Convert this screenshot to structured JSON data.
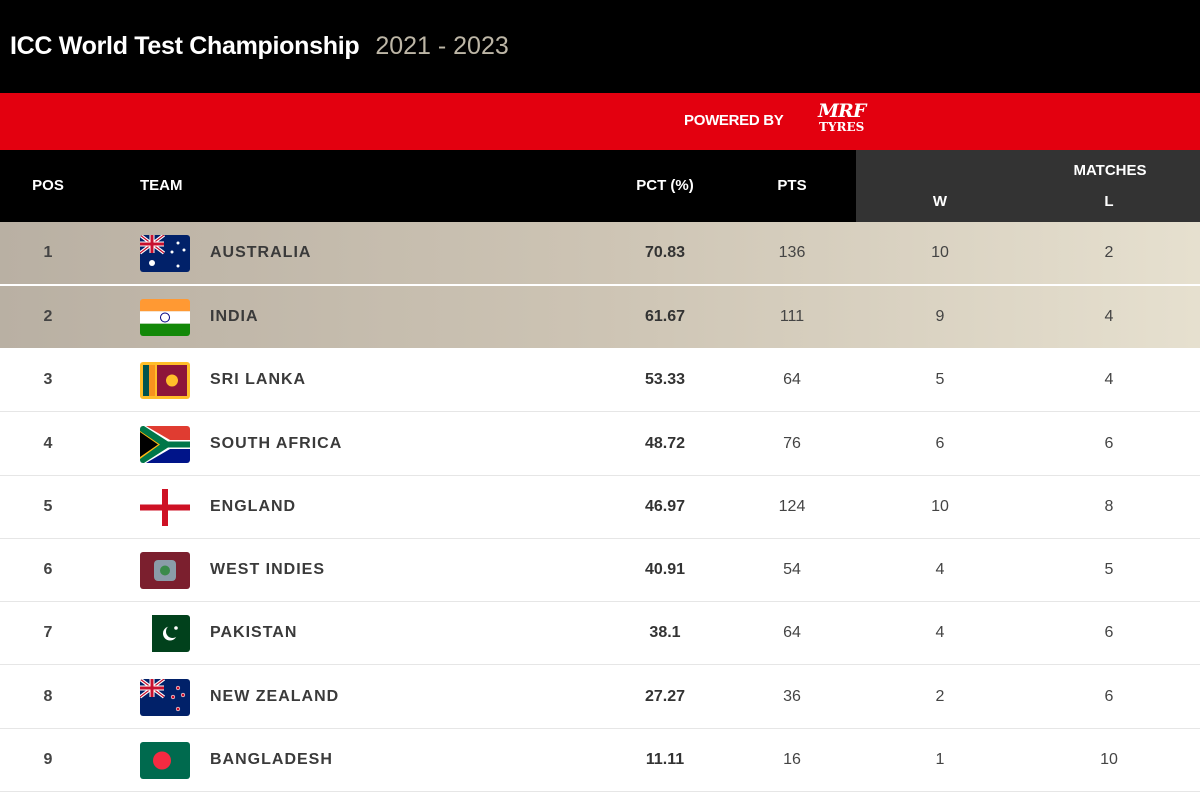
{
  "header": {
    "title": "ICC World Test Championship",
    "years": "2021 - 2023"
  },
  "sponsor": {
    "powered_by": "POWERED BY",
    "logo_main": "MRF",
    "logo_sub": "TYRES",
    "color": "#e3000f"
  },
  "columns": {
    "pos": "POS",
    "team": "TEAM",
    "pct": "PCT (%)",
    "pts": "PTS",
    "matches": "MATCHES",
    "w": "W",
    "l": "L"
  },
  "rows": [
    {
      "pos": "1",
      "team": "AUSTRALIA",
      "flag": "australia-flag-icon",
      "pct": "70.83",
      "pts": "136",
      "w": "10",
      "l": "2",
      "highlight": true
    },
    {
      "pos": "2",
      "team": "INDIA",
      "flag": "india-flag-icon",
      "pct": "61.67",
      "pts": "111",
      "w": "9",
      "l": "4",
      "highlight": true
    },
    {
      "pos": "3",
      "team": "SRI LANKA",
      "flag": "sri-lanka-flag-icon",
      "pct": "53.33",
      "pts": "64",
      "w": "5",
      "l": "4"
    },
    {
      "pos": "4",
      "team": "SOUTH AFRICA",
      "flag": "south-africa-flag-icon",
      "pct": "48.72",
      "pts": "76",
      "w": "6",
      "l": "6"
    },
    {
      "pos": "5",
      "team": "ENGLAND",
      "flag": "england-flag-icon",
      "pct": "46.97",
      "pts": "124",
      "w": "10",
      "l": "8"
    },
    {
      "pos": "6",
      "team": "WEST INDIES",
      "flag": "west-indies-flag-icon",
      "pct": "40.91",
      "pts": "54",
      "w": "4",
      "l": "5"
    },
    {
      "pos": "7",
      "team": "PAKISTAN",
      "flag": "pakistan-flag-icon",
      "pct": "38.1",
      "pts": "64",
      "w": "4",
      "l": "6"
    },
    {
      "pos": "8",
      "team": "NEW ZEALAND",
      "flag": "new-zealand-flag-icon",
      "pct": "27.27",
      "pts": "36",
      "w": "2",
      "l": "6"
    },
    {
      "pos": "9",
      "team": "BANGLADESH",
      "flag": "bangladesh-flag-icon",
      "pct": "11.11",
      "pts": "16",
      "w": "1",
      "l": "10"
    }
  ]
}
